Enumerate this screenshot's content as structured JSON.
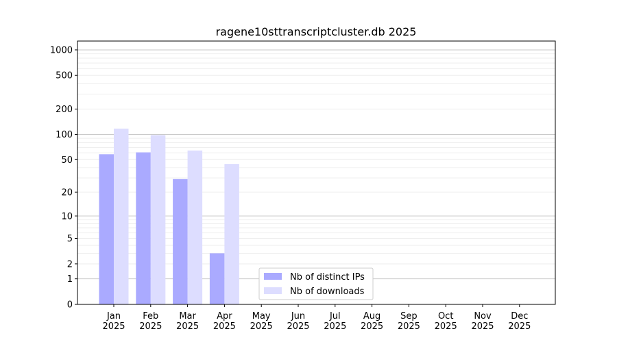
{
  "chart_data": {
    "type": "bar",
    "title": "ragene10sttranscriptcluster.db 2025",
    "xlabel": "",
    "ylabel": "",
    "yscale": "log(1+x)",
    "ylim": [
      0,
      1270
    ],
    "yticks": [
      0,
      1,
      2,
      5,
      10,
      20,
      50,
      100,
      200,
      500,
      1000
    ],
    "grid": "horizontal",
    "legend_position": "lower-center",
    "categories": [
      "Jan\n2025",
      "Feb\n2025",
      "Mar\n2025",
      "Apr\n2025",
      "May\n2025",
      "Jun\n2025",
      "Jul\n2025",
      "Aug\n2025",
      "Sep\n2025",
      "Oct\n2025",
      "Nov\n2025",
      "Dec\n2025"
    ],
    "series": [
      {
        "name": "Nb of distinct IPs",
        "color": "#aaaaff",
        "values": [
          58,
          61,
          29,
          3,
          null,
          null,
          null,
          null,
          null,
          null,
          null,
          null
        ]
      },
      {
        "name": "Nb of downloads",
        "color": "#ddddff",
        "values": [
          117,
          98,
          64,
          44,
          null,
          null,
          null,
          null,
          null,
          null,
          null,
          null
        ]
      }
    ]
  }
}
